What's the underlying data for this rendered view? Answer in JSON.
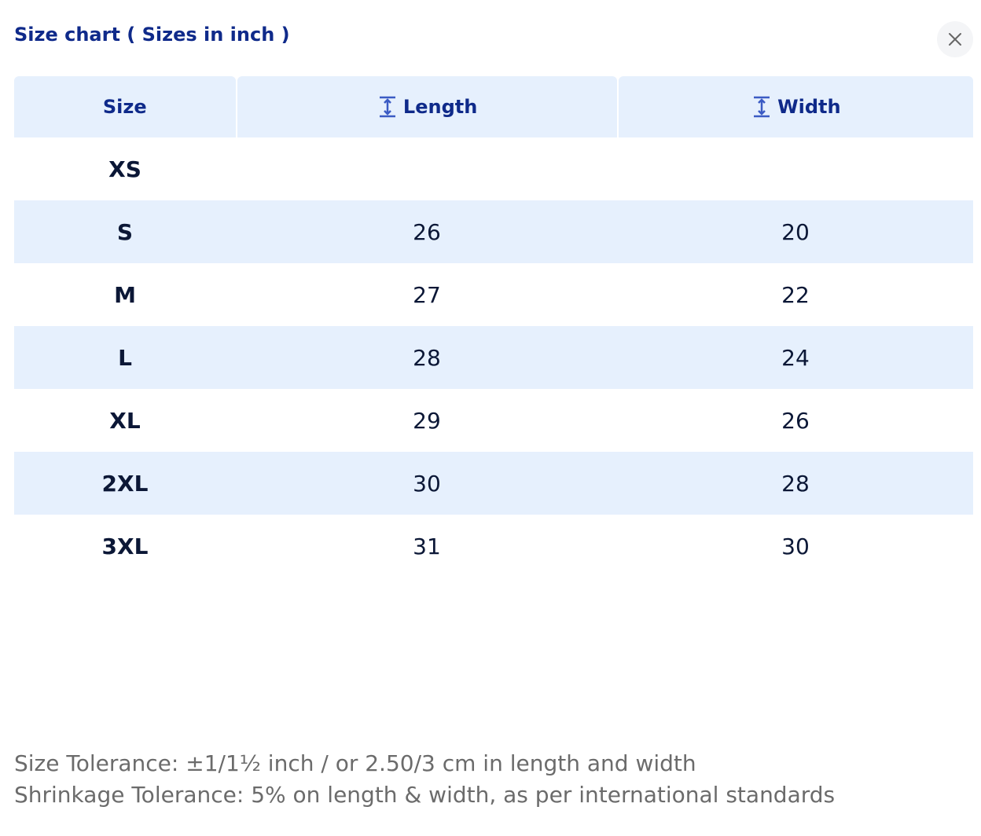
{
  "header": {
    "title": "Size chart ( Sizes in inch )"
  },
  "table": {
    "columns": [
      "Size",
      "Length",
      "Width"
    ],
    "rows": [
      [
        "XS",
        null,
        null
      ],
      [
        "S",
        "26",
        "20"
      ],
      [
        "M",
        "27",
        "22"
      ],
      [
        "L",
        "28",
        "24"
      ],
      [
        "XL",
        "29",
        "26"
      ],
      [
        "2XL",
        "30",
        "28"
      ],
      [
        "3XL",
        "31",
        "30"
      ]
    ]
  },
  "notes": [
    "Size Tolerance: ±1/1½ inch / or 2.50/3 cm in length and width",
    "Shrinkage Tolerance: 5% on length & width, as per international standards"
  ]
}
